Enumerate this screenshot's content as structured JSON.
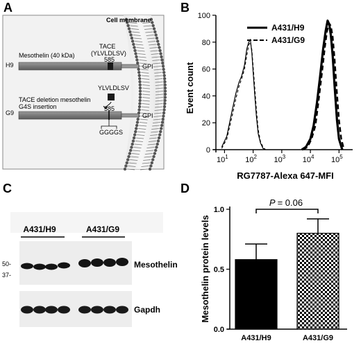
{
  "panels": {
    "a": {
      "letter": "A",
      "membrane_label": "Cell membrane",
      "h9": {
        "row_label": "H9",
        "construct": "Mesothelin (40 kDa)",
        "tace_label": "TACE",
        "tace_sequence": "(YLVLDLSV)",
        "position": "585",
        "anchor": "GPI"
      },
      "g9": {
        "row_label": "G9",
        "construct_line1": "TACE deletion mesothelin",
        "construct_line2": "G4S insertion",
        "deleted_sequence": "YLVLDLSV",
        "position": "585",
        "insert": "GGGGS",
        "anchor": "GPI"
      }
    },
    "b": {
      "letter": "B",
      "chart_data": {
        "type": "line",
        "xlabel": "RG7787-Alexa 647-MFI",
        "ylabel": "Event count",
        "xscale": "log",
        "xlim": [
          5,
          300000
        ],
        "ylim": [
          0,
          100
        ],
        "x_ticks": [
          {
            "v": 10,
            "base": "10",
            "exp": "1"
          },
          {
            "v": 100,
            "base": "10",
            "exp": "2"
          },
          {
            "v": 1000,
            "base": "10",
            "exp": "3"
          },
          {
            "v": 10000,
            "base": "10",
            "exp": "4"
          },
          {
            "v": 100000,
            "base": "10",
            "exp": "5"
          }
        ],
        "y_ticks": [
          0,
          20,
          40,
          60,
          80,
          100
        ],
        "legend_position": "top-right",
        "series": [
          {
            "name": "A431/H9",
            "style": "solid",
            "populations": [
              {
                "x": [
                  8,
                  12,
                  18,
                  25,
                  32,
                  40,
                  50,
                  60,
                  70,
                  80,
                  90,
                  100,
                  115,
                  130,
                  150,
                  180,
                  220,
                  270
                ],
                "y": [
                  2,
                  10,
                  28,
                  42,
                  50,
                  55,
                  63,
                  75,
                  80,
                  82,
                  72,
                  58,
                  40,
                  25,
                  12,
                  5,
                  1,
                  0
                ]
              },
              {
                "x": [
                  5000,
                  7000,
                  10000,
                  13000,
                  17000,
                  22000,
                  28000,
                  34000,
                  40000,
                  46000,
                  52000,
                  60000,
                  70000,
                  85000,
                  100000,
                  130000
                ],
                "y": [
                  0,
                  2,
                  8,
                  18,
                  35,
                  55,
                  75,
                  88,
                  96,
                  93,
                  85,
                  70,
                  48,
                  22,
                  8,
                  0
                ]
              }
            ]
          },
          {
            "name": "A431/G9",
            "style": "dashed",
            "populations": [
              {
                "x": [
                  8,
                  12,
                  18,
                  25,
                  32,
                  40,
                  50,
                  60,
                  70,
                  80,
                  90,
                  100,
                  115,
                  130,
                  150,
                  180,
                  220,
                  270
                ],
                "y": [
                  1,
                  8,
                  24,
                  38,
                  47,
                  53,
                  60,
                  70,
                  78,
                  80,
                  74,
                  62,
                  45,
                  30,
                  15,
                  6,
                  2,
                  0
                ]
              },
              {
                "x": [
                  5500,
                  8000,
                  11000,
                  15000,
                  19000,
                  25000,
                  32000,
                  38000,
                  45000,
                  52000,
                  60000,
                  70000,
                  82000,
                  100000,
                  120000,
                  150000
                ],
                "y": [
                  0,
                  2,
                  8,
                  18,
                  35,
                  56,
                  76,
                  88,
                  94,
                  92,
                  84,
                  68,
                  46,
                  22,
                  8,
                  0
                ]
              }
            ]
          }
        ]
      }
    },
    "c": {
      "letter": "C",
      "lane_groups": [
        "A431/H9",
        "A431/G9"
      ],
      "markers": [
        "50-",
        "37-"
      ],
      "blots": [
        "Mesothelin",
        "Gapdh"
      ]
    },
    "d": {
      "letter": "D",
      "chart_data": {
        "type": "bar",
        "categories": [
          "A431/H9",
          "A431/G9"
        ],
        "values": [
          0.58,
          0.8
        ],
        "errors": [
          0.13,
          0.12
        ],
        "fills": [
          "solid-black",
          "checkerboard"
        ],
        "ylabel": "Mesothelin protein levels",
        "ylim": [
          0,
          1.0
        ],
        "y_ticks": [
          "0.0",
          "0.5",
          "1.0"
        ],
        "significance": {
          "p_label": "P",
          "p_value": "= 0.06"
        }
      }
    }
  }
}
